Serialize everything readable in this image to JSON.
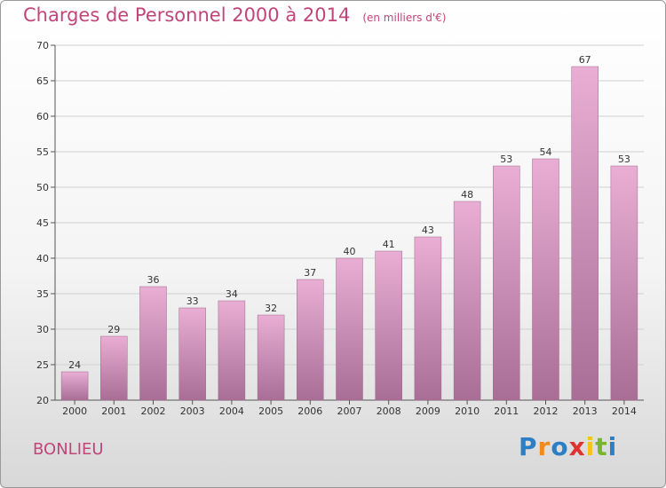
{
  "header": {
    "title": "Charges de Personnel 2000 à 2014",
    "unit": "(en milliers d'€)"
  },
  "footer": {
    "town": "BONLIEU",
    "logo": [
      "P",
      "r",
      "o",
      "x",
      "i",
      "t",
      "i"
    ]
  },
  "colors": {
    "accent": "#c2457a",
    "bar_top": "#eaaed4",
    "bar_bottom": "#a86e96",
    "logo": [
      "#2c7fc5",
      "#f08a1c",
      "#2c7fc5",
      "#e0332f",
      "#f5c41a",
      "#79b62c",
      "#2c7fc5"
    ]
  },
  "chart_data": {
    "type": "bar",
    "title": "Charges de Personnel 2000 à 2014",
    "subtitle": "(en milliers d'€)",
    "categories": [
      "2000",
      "2001",
      "2002",
      "2003",
      "2004",
      "2005",
      "2006",
      "2007",
      "2008",
      "2009",
      "2010",
      "2011",
      "2012",
      "2013",
      "2014"
    ],
    "values": [
      24,
      29,
      36,
      33,
      34,
      32,
      37,
      40,
      41,
      43,
      48,
      53,
      54,
      67,
      53
    ],
    "value_labels": [
      "24",
      "29",
      "36",
      "33",
      "34",
      "32",
      "37",
      "40",
      "41",
      "43",
      "48",
      "53",
      "54",
      "67",
      "53"
    ],
    "ylim": [
      20,
      70
    ],
    "yticks": [
      20,
      25,
      30,
      35,
      40,
      45,
      50,
      55,
      60,
      65,
      70
    ],
    "ytick_labels": [
      "20",
      "25",
      "30",
      "35",
      "40",
      "45",
      "50",
      "55",
      "60",
      "65",
      "70"
    ],
    "grid": "horizontal",
    "legend": "none"
  }
}
